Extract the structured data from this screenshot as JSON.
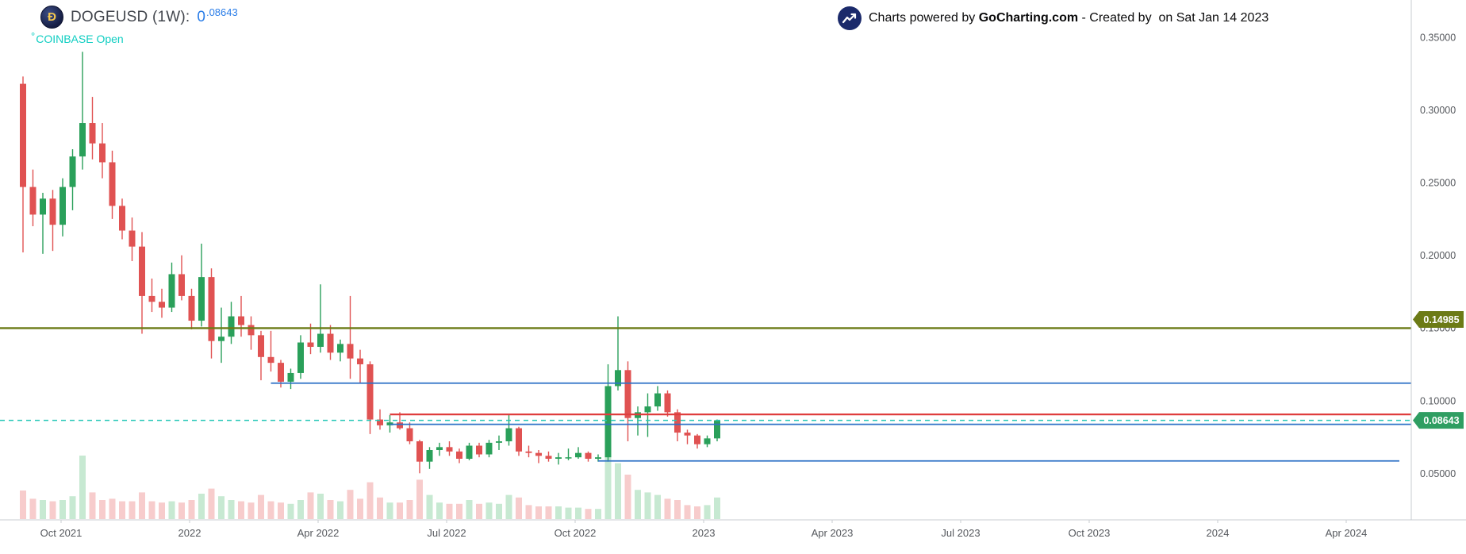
{
  "header": {
    "logo_glyph": "Ð",
    "symbol_title": "DOGEUSD (1W):",
    "price_main": "0",
    "price_sup": ".08643",
    "status_dot": "°",
    "exchange_status": "COINBASE Open"
  },
  "attribution": {
    "prefix": "Charts powered by ",
    "brand": "GoCharting.com",
    "suffix": " - Created by  on Sat Jan 14 2023"
  },
  "colors": {
    "bull": "#2aa05a",
    "bear": "#e05252",
    "bull_vol": "#c7e9d2",
    "bear_vol": "#f7cccc",
    "axis_text": "#55585d",
    "axis_line": "#c9ccd2",
    "header_symbol": "#42464d",
    "header_price": "#2a7de8",
    "exchange_status": "#0fcec2",
    "attribution_text": "#0b0b0c",
    "olive_line": "#6c7b16",
    "blue_line": "#2e72c6",
    "red_line": "#df3e3e",
    "last_price_line": "#25c7b7",
    "last_price_tag": "#2f9e62"
  },
  "chart_data": {
    "type": "candlestick",
    "symbol": "DOGEUSD",
    "timeframe": "1W",
    "exchange": "COINBASE",
    "market_status": "Open",
    "grid": "off",
    "legend_position": "top-left",
    "ylim": [
      0.03,
      0.376
    ],
    "last_price": {
      "value": 0.08643,
      "label": "0.08643",
      "style": "dashed"
    },
    "y_axis": {
      "side": "right",
      "ticks": [
        {
          "price": 0.35,
          "label": "0.35000"
        },
        {
          "price": 0.3,
          "label": "0.30000"
        },
        {
          "price": 0.25,
          "label": "0.25000"
        },
        {
          "price": 0.2,
          "label": "0.20000"
        },
        {
          "price": 0.15,
          "label": "0.15000"
        },
        {
          "price": 0.1,
          "label": "0.10000"
        },
        {
          "price": 0.05,
          "label": "0.05000"
        }
      ]
    },
    "x_axis": {
      "labels": [
        "Oct 2021",
        "2022",
        "Apr 2022",
        "Jul 2022",
        "Oct 2022",
        "2023",
        "Apr 2023",
        "Jul 2023",
        "Oct 2023",
        "2024",
        "Apr 2024"
      ]
    },
    "tags": [
      {
        "label": "0.14985",
        "price": 0.14985,
        "bg": "#6c7b16",
        "dy": -11
      },
      {
        "label": "0.08643",
        "price": 0.08643,
        "bg": "#2f9e62",
        "dy": 0
      }
    ],
    "drawings": [
      {
        "id": "olive-resistance-hline",
        "type": "hline",
        "price": 0.14985,
        "color": "#6c7b16",
        "width": 2.4
      },
      {
        "id": "blue-ray-upper",
        "type": "ray",
        "price": 0.112,
        "start_index": 25,
        "color": "#2e72c6",
        "width": 1.8
      },
      {
        "id": "red-level-line",
        "type": "ray",
        "price": 0.0905,
        "start_index": 37,
        "color": "#df3e3e",
        "width": 2.2
      },
      {
        "id": "blue-ray-mid",
        "type": "ray",
        "price": 0.0837,
        "start_index": 37,
        "color": "#2e72c6",
        "width": 1.8
      },
      {
        "id": "blue-ray-lower",
        "type": "ray",
        "price": 0.0585,
        "start_index": 58,
        "end_x": 1764,
        "color": "#2e72c6",
        "width": 1.8
      }
    ],
    "candles_columns": [
      "week_start",
      "open",
      "high",
      "low",
      "close",
      "volume_rel"
    ],
    "candles": [
      [
        "2021-09-06",
        0.318,
        0.323,
        0.202,
        0.247,
        45
      ],
      [
        "2021-09-13",
        0.247,
        0.259,
        0.22,
        0.228,
        32
      ],
      [
        "2021-09-20",
        0.228,
        0.243,
        0.201,
        0.239,
        30
      ],
      [
        "2021-09-27",
        0.239,
        0.245,
        0.203,
        0.221,
        28
      ],
      [
        "2021-10-04",
        0.221,
        0.253,
        0.213,
        0.247,
        30
      ],
      [
        "2021-10-11",
        0.247,
        0.273,
        0.231,
        0.268,
        36
      ],
      [
        "2021-10-18",
        0.268,
        0.34,
        0.259,
        0.291,
        100
      ],
      [
        "2021-10-25",
        0.291,
        0.309,
        0.266,
        0.277,
        42
      ],
      [
        "2021-11-01",
        0.277,
        0.291,
        0.253,
        0.264,
        30
      ],
      [
        "2021-11-08",
        0.264,
        0.272,
        0.225,
        0.234,
        32
      ],
      [
        "2021-11-15",
        0.234,
        0.239,
        0.211,
        0.217,
        28
      ],
      [
        "2021-11-22",
        0.217,
        0.226,
        0.196,
        0.206,
        28
      ],
      [
        "2021-11-29",
        0.206,
        0.216,
        0.146,
        0.172,
        42
      ],
      [
        "2021-12-06",
        0.172,
        0.184,
        0.161,
        0.168,
        28
      ],
      [
        "2021-12-13",
        0.168,
        0.177,
        0.157,
        0.164,
        26
      ],
      [
        "2021-12-20",
        0.164,
        0.195,
        0.161,
        0.187,
        28
      ],
      [
        "2021-12-27",
        0.187,
        0.2,
        0.169,
        0.172,
        26
      ],
      [
        "2022-01-03",
        0.172,
        0.177,
        0.149,
        0.155,
        30
      ],
      [
        "2022-01-10",
        0.155,
        0.208,
        0.151,
        0.185,
        40
      ],
      [
        "2022-01-17",
        0.185,
        0.191,
        0.129,
        0.141,
        48
      ],
      [
        "2022-01-24",
        0.141,
        0.164,
        0.126,
        0.144,
        36
      ],
      [
        "2022-01-31",
        0.144,
        0.168,
        0.139,
        0.158,
        30
      ],
      [
        "2022-02-07",
        0.158,
        0.172,
        0.144,
        0.152,
        28
      ],
      [
        "2022-02-14",
        0.152,
        0.158,
        0.135,
        0.145,
        26
      ],
      [
        "2022-02-21",
        0.145,
        0.148,
        0.114,
        0.13,
        38
      ],
      [
        "2022-02-28",
        0.13,
        0.148,
        0.12,
        0.126,
        28
      ],
      [
        "2022-03-07",
        0.126,
        0.128,
        0.109,
        0.113,
        26
      ],
      [
        "2022-03-14",
        0.113,
        0.122,
        0.108,
        0.119,
        24
      ],
      [
        "2022-03-21",
        0.119,
        0.145,
        0.115,
        0.14,
        30
      ],
      [
        "2022-03-28",
        0.14,
        0.153,
        0.132,
        0.137,
        42
      ],
      [
        "2022-04-04",
        0.137,
        0.18,
        0.133,
        0.146,
        40
      ],
      [
        "2022-04-11",
        0.146,
        0.152,
        0.128,
        0.133,
        30
      ],
      [
        "2022-04-18",
        0.133,
        0.142,
        0.127,
        0.139,
        28
      ],
      [
        "2022-04-25",
        0.139,
        0.172,
        0.115,
        0.129,
        46
      ],
      [
        "2022-05-02",
        0.129,
        0.135,
        0.112,
        0.125,
        32
      ],
      [
        "2022-05-09",
        0.125,
        0.127,
        0.077,
        0.087,
        58
      ],
      [
        "2022-05-16",
        0.087,
        0.094,
        0.08,
        0.083,
        34
      ],
      [
        "2022-05-23",
        0.083,
        0.09,
        0.078,
        0.085,
        26
      ],
      [
        "2022-05-30",
        0.085,
        0.092,
        0.08,
        0.081,
        26
      ],
      [
        "2022-06-06",
        0.081,
        0.085,
        0.07,
        0.072,
        30
      ],
      [
        "2022-06-13",
        0.072,
        0.073,
        0.05,
        0.058,
        62
      ],
      [
        "2022-06-20",
        0.058,
        0.068,
        0.053,
        0.066,
        38
      ],
      [
        "2022-06-27",
        0.066,
        0.071,
        0.062,
        0.068,
        26
      ],
      [
        "2022-07-04",
        0.068,
        0.072,
        0.062,
        0.065,
        24
      ],
      [
        "2022-07-11",
        0.065,
        0.067,
        0.057,
        0.06,
        24
      ],
      [
        "2022-07-18",
        0.06,
        0.071,
        0.059,
        0.069,
        30
      ],
      [
        "2022-07-25",
        0.069,
        0.071,
        0.061,
        0.063,
        24
      ],
      [
        "2022-08-01",
        0.063,
        0.073,
        0.061,
        0.071,
        26
      ],
      [
        "2022-08-08",
        0.071,
        0.076,
        0.066,
        0.072,
        24
      ],
      [
        "2022-08-15",
        0.072,
        0.09,
        0.069,
        0.081,
        38
      ],
      [
        "2022-08-22",
        0.081,
        0.082,
        0.062,
        0.065,
        34
      ],
      [
        "2022-08-29",
        0.065,
        0.069,
        0.061,
        0.064,
        22
      ],
      [
        "2022-09-05",
        0.064,
        0.066,
        0.057,
        0.062,
        20
      ],
      [
        "2022-09-12",
        0.062,
        0.065,
        0.058,
        0.06,
        20
      ],
      [
        "2022-09-19",
        0.06,
        0.064,
        0.056,
        0.061,
        20
      ],
      [
        "2022-09-26",
        0.061,
        0.067,
        0.059,
        0.061,
        18
      ],
      [
        "2022-10-03",
        0.061,
        0.068,
        0.06,
        0.064,
        18
      ],
      [
        "2022-10-10",
        0.064,
        0.065,
        0.058,
        0.06,
        16
      ],
      [
        "2022-10-17",
        0.06,
        0.063,
        0.058,
        0.061,
        16
      ],
      [
        "2022-10-24",
        0.061,
        0.125,
        0.058,
        0.11,
        98
      ],
      [
        "2022-10-31",
        0.11,
        0.158,
        0.107,
        0.121,
        88
      ],
      [
        "2022-11-07",
        0.121,
        0.127,
        0.072,
        0.088,
        70
      ],
      [
        "2022-11-14",
        0.088,
        0.096,
        0.076,
        0.092,
        46
      ],
      [
        "2022-11-21",
        0.092,
        0.105,
        0.075,
        0.096,
        42
      ],
      [
        "2022-11-28",
        0.096,
        0.11,
        0.093,
        0.105,
        38
      ],
      [
        "2022-12-05",
        0.105,
        0.107,
        0.089,
        0.092,
        32
      ],
      [
        "2022-12-12",
        0.092,
        0.094,
        0.072,
        0.078,
        30
      ],
      [
        "2022-12-19",
        0.078,
        0.08,
        0.07,
        0.076,
        22
      ],
      [
        "2022-12-26",
        0.076,
        0.077,
        0.067,
        0.07,
        20
      ],
      [
        "2023-01-02",
        0.07,
        0.076,
        0.068,
        0.074,
        22
      ],
      [
        "2023-01-09",
        0.074,
        0.087,
        0.072,
        0.08643,
        34
      ]
    ]
  }
}
